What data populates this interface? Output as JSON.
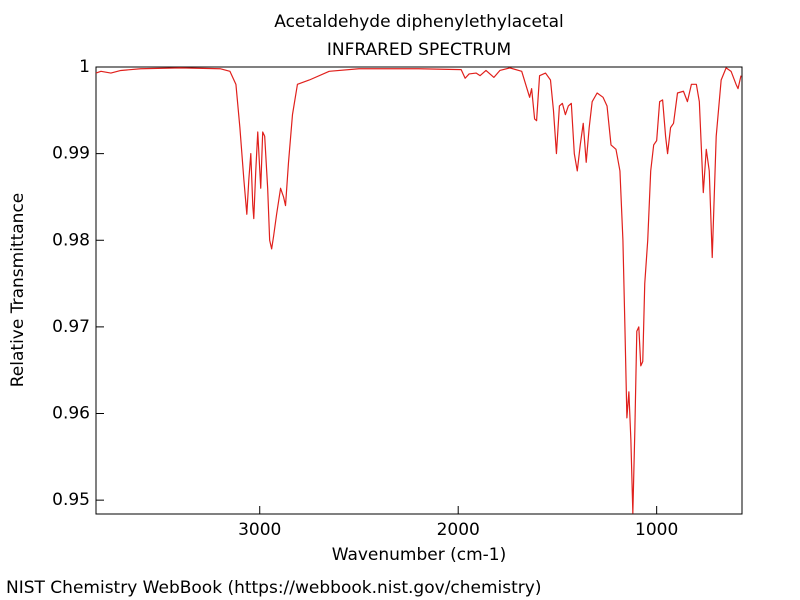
{
  "chart_data": {
    "type": "line",
    "title": "Acetaldehyde diphenylethylacetal",
    "subtitle": "INFRARED SPECTRUM",
    "x_label": "Wavenumber (cm-1)",
    "y_label": "Relative Transmittance",
    "footer": "NIST Chemistry WebBook (https://webbook.nist.gov/chemistry)",
    "color": "#e0201c",
    "xlim": [
      3825,
      570
    ],
    "ylim": [
      0.9484,
      1.0
    ],
    "xticks": [
      3000,
      2000,
      1000
    ],
    "yticks": [
      1,
      0.99,
      0.98,
      0.97,
      0.96,
      0.95
    ],
    "x": [
      3825,
      3800,
      3750,
      3700,
      3600,
      3400,
      3200,
      3150,
      3120,
      3100,
      3080,
      3065,
      3055,
      3045,
      3035,
      3030,
      3020,
      3010,
      2995,
      2985,
      2975,
      2960,
      2950,
      2940,
      2930,
      2915,
      2895,
      2880,
      2870,
      2855,
      2835,
      2810,
      2750,
      2650,
      2500,
      2200,
      1985,
      1965,
      1945,
      1910,
      1890,
      1860,
      1820,
      1790,
      1740,
      1680,
      1660,
      1640,
      1630,
      1615,
      1605,
      1590,
      1560,
      1535,
      1520,
      1505,
      1490,
      1475,
      1460,
      1445,
      1430,
      1415,
      1400,
      1385,
      1370,
      1355,
      1340,
      1325,
      1300,
      1270,
      1250,
      1230,
      1205,
      1185,
      1170,
      1160,
      1150,
      1140,
      1130,
      1120,
      1110,
      1100,
      1090,
      1080,
      1070,
      1060,
      1045,
      1030,
      1015,
      1000,
      985,
      970,
      955,
      945,
      930,
      915,
      895,
      865,
      845,
      825,
      800,
      785,
      765,
      750,
      735,
      720,
      700,
      675,
      650,
      625,
      600,
      590,
      575
    ],
    "values": [
      0.9993,
      0.9995,
      0.9993,
      0.9996,
      0.9998,
      0.9999,
      0.9998,
      0.9995,
      0.998,
      0.993,
      0.987,
      0.983,
      0.987,
      0.99,
      0.984,
      0.9825,
      0.988,
      0.9925,
      0.986,
      0.9925,
      0.992,
      0.986,
      0.98,
      0.979,
      0.9805,
      0.983,
      0.986,
      0.985,
      0.984,
      0.989,
      0.9945,
      0.998,
      0.9985,
      0.9995,
      0.9998,
      0.9998,
      0.9997,
      0.9987,
      0.9992,
      0.9993,
      0.999,
      0.9996,
      0.9988,
      0.9996,
      0.9999,
      0.9995,
      0.998,
      0.9965,
      0.9975,
      0.994,
      0.9938,
      0.999,
      0.9993,
      0.9985,
      0.995,
      0.99,
      0.9955,
      0.9958,
      0.9945,
      0.9955,
      0.9958,
      0.99,
      0.988,
      0.991,
      0.9935,
      0.989,
      0.993,
      0.996,
      0.997,
      0.9965,
      0.9955,
      0.991,
      0.9905,
      0.988,
      0.98,
      0.97,
      0.9595,
      0.9625,
      0.957,
      0.9485,
      0.958,
      0.9695,
      0.97,
      0.9655,
      0.966,
      0.975,
      0.98,
      0.988,
      0.991,
      0.9915,
      0.996,
      0.9962,
      0.992,
      0.99,
      0.993,
      0.9935,
      0.997,
      0.9972,
      0.996,
      0.998,
      0.998,
      0.996,
      0.9855,
      0.9905,
      0.988,
      0.978,
      0.992,
      0.9985,
      0.9999,
      0.9995,
      0.998,
      0.9975,
      0.999
    ]
  }
}
